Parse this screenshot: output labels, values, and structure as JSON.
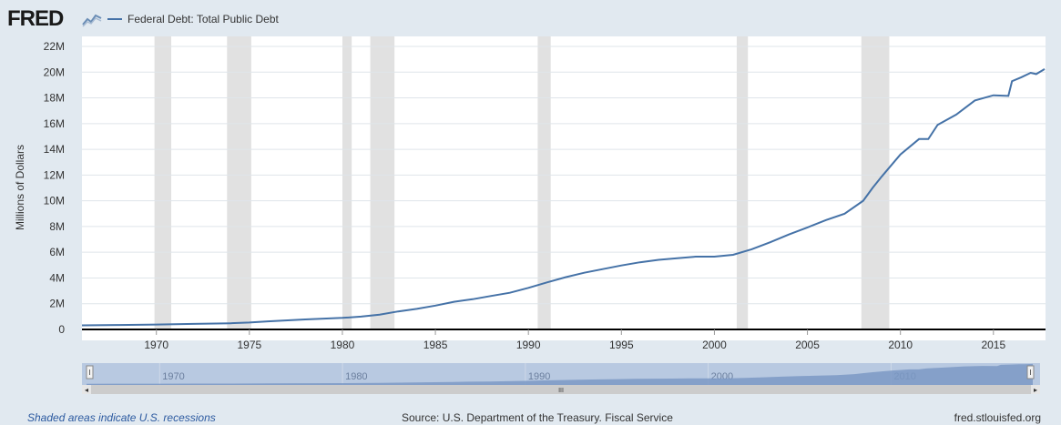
{
  "header": {
    "logo_text": "FRED",
    "logo_icon": "chart-line-icon",
    "legend_label": "Federal Debt: Total Public Debt"
  },
  "colors": {
    "line": "#4572a7",
    "recession": "#e1e1e1",
    "grid": "#dfe5ea",
    "page_bg": "#e1e9f0",
    "nav_fill": "#7b99c4"
  },
  "footer": {
    "recessions_note": "Shaded areas indicate U.S. recessions",
    "source": "Source: U.S. Department of the Treasury. Fiscal Service",
    "site": "fred.stlouisfed.org"
  },
  "navigator": {
    "tick_labels": [
      "1970",
      "1980",
      "1990",
      "2000",
      "2010"
    ],
    "scroll_grip": "III"
  },
  "chart_data": {
    "type": "line",
    "title": "",
    "xlabel": "",
    "ylabel": "Millions of Dollars",
    "xlim": [
      1966.0,
      2017.8
    ],
    "ylim": [
      0,
      22000000
    ],
    "y_ticks": [
      0,
      2000000,
      4000000,
      6000000,
      8000000,
      10000000,
      12000000,
      14000000,
      16000000,
      18000000,
      20000000,
      22000000
    ],
    "y_tick_labels": [
      "0",
      "2M",
      "4M",
      "6M",
      "8M",
      "10M",
      "12M",
      "14M",
      "16M",
      "18M",
      "20M",
      "22M"
    ],
    "x_ticks": [
      1970,
      1975,
      1980,
      1985,
      1990,
      1995,
      2000,
      2005,
      2010,
      2015
    ],
    "x_tick_labels": [
      "1970",
      "1975",
      "1980",
      "1985",
      "1990",
      "1995",
      "2000",
      "2005",
      "2010",
      "2015"
    ],
    "grid": true,
    "legend": "top-left",
    "recessions": [
      [
        1969.9,
        1970.8
      ],
      [
        1973.8,
        1975.1
      ],
      [
        1980.0,
        1980.5
      ],
      [
        1981.5,
        1982.8
      ],
      [
        1990.5,
        1991.2
      ],
      [
        2001.2,
        2001.8
      ],
      [
        2007.9,
        2009.4
      ]
    ],
    "series": [
      {
        "name": "Federal Debt: Total Public Debt",
        "x": [
          1966.0,
          1968,
          1970,
          1972,
          1974,
          1975,
          1976,
          1978,
          1980,
          1981,
          1982,
          1983,
          1984,
          1985,
          1986,
          1987,
          1988,
          1989,
          1990,
          1991,
          1992,
          1993,
          1994,
          1995,
          1996,
          1997,
          1998,
          1999,
          2000,
          2001,
          2002,
          2003,
          2004,
          2005,
          2006,
          2007,
          2008,
          2008.5,
          2009,
          2010,
          2011,
          2011.5,
          2012,
          2013,
          2014,
          2015,
          2015.8,
          2016,
          2016.5,
          2017,
          2017.3,
          2017.75
        ],
        "values": [
          320000,
          350000,
          380000,
          430000,
          480000,
          540000,
          630000,
          780000,
          900000,
          1000000,
          1150000,
          1400000,
          1600000,
          1850000,
          2150000,
          2350000,
          2600000,
          2850000,
          3230000,
          3660000,
          4060000,
          4410000,
          4690000,
          4970000,
          5220000,
          5410000,
          5530000,
          5660000,
          5660000,
          5800000,
          6230000,
          6780000,
          7380000,
          7930000,
          8500000,
          9000000,
          10000000,
          11000000,
          11900000,
          13600000,
          14800000,
          14800000,
          15900000,
          16700000,
          17800000,
          18200000,
          18150000,
          19300000,
          19600000,
          19950000,
          19850000,
          20240000
        ]
      }
    ]
  }
}
